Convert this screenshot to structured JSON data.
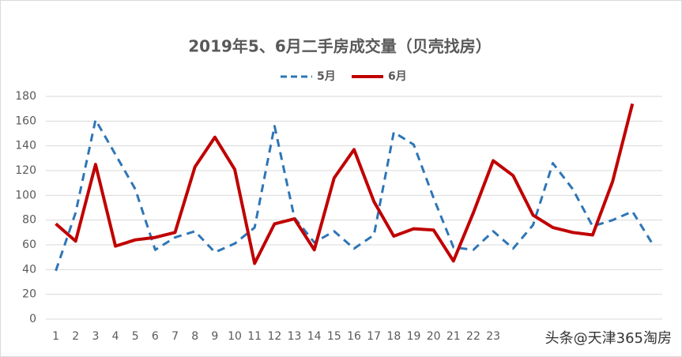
{
  "chart_data": {
    "type": "line",
    "title": "2019年5、6月二手房成交量（贝壳找房）",
    "categories": [
      "1",
      "2",
      "3",
      "4",
      "5",
      "6",
      "7",
      "8",
      "9",
      "10",
      "11",
      "12",
      "13",
      "14",
      "15",
      "16",
      "17",
      "18",
      "19",
      "20",
      "21",
      "22",
      "23",
      null,
      null,
      null,
      null,
      null,
      null,
      null,
      null
    ],
    "series": [
      {
        "name": "5月",
        "color": "#2e75b6",
        "dash": true,
        "values": [
          39,
          86,
          161,
          133,
          105,
          56,
          66,
          71,
          54,
          61,
          74,
          156,
          82,
          62,
          71,
          57,
          68,
          151,
          141,
          98,
          58,
          56,
          71,
          57,
          76,
          126,
          105,
          75,
          80,
          87,
          61
        ]
      },
      {
        "name": "6月",
        "color": "#c00000",
        "dash": false,
        "values": [
          77,
          63,
          125,
          59,
          64,
          66,
          70,
          123,
          147,
          121,
          45,
          77,
          81,
          56,
          114,
          137,
          95,
          67,
          73,
          72,
          47,
          86,
          128,
          116,
          84,
          74,
          70,
          68,
          111,
          174,
          null
        ]
      }
    ],
    "ylim": [
      0,
      180
    ],
    "yticks": [
      0,
      20,
      40,
      60,
      80,
      100,
      120,
      140,
      160,
      180
    ],
    "grid": true,
    "legend": "top",
    "watermark": "头条@天津365淘房"
  }
}
